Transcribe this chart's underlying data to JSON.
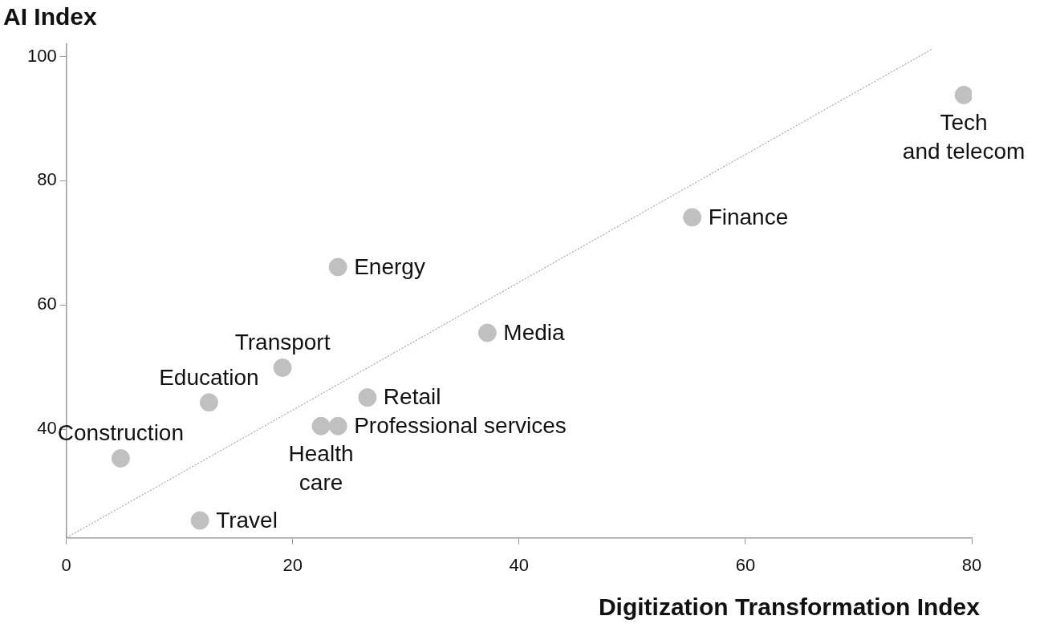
{
  "chart_data": {
    "type": "scatter",
    "xlabel": "Digitization Transformation Index",
    "ylabel": "AI Index",
    "xlim": [
      0,
      80
    ],
    "xticks": [
      0,
      20,
      40,
      60,
      80
    ],
    "ylim": [
      22.5,
      102
    ],
    "yticks": [
      40,
      60,
      80,
      100
    ],
    "grid": false,
    "legend": false,
    "marker": "circle",
    "series": [
      {
        "color": "#c0c0c0",
        "x": [
          4.8,
          11.8,
          12.6,
          19.1,
          22.5,
          24.0,
          26.6,
          24.0,
          37.2,
          55.3,
          79.3
        ],
        "values": [
          35.3,
          25.3,
          44.3,
          49.9,
          40.5,
          40.5,
          45.1,
          66.1,
          55.5,
          74.1,
          93.8
        ]
      },
      {
        "type": "line",
        "color": "#888888",
        "line_style": "dotted",
        "marker": "none",
        "x": [
          0,
          76.5
        ],
        "values": [
          22.5,
          101.2
        ]
      }
    ],
    "annotations": [
      {
        "text": "Construction",
        "x": 4.8,
        "y": 35.3
      },
      {
        "text": "Travel",
        "x": 11.8,
        "y": 25.3
      },
      {
        "text": "Education",
        "x": 12.6,
        "y": 44.3
      },
      {
        "text": "Transport",
        "x": 19.1,
        "y": 49.9
      },
      {
        "text": "Health care",
        "x": 22.5,
        "y": 40.5
      },
      {
        "text": "Professional services",
        "x": 24.0,
        "y": 40.5
      },
      {
        "text": "Retail",
        "x": 26.6,
        "y": 45.1
      },
      {
        "text": "Energy",
        "x": 24.0,
        "y": 66.1
      },
      {
        "text": "Media",
        "x": 37.2,
        "y": 55.5
      },
      {
        "text": "Finance",
        "x": 55.3,
        "y": 74.1
      },
      {
        "text": "Tech and telecom",
        "x": 79.3,
        "y": 93.8
      }
    ]
  }
}
